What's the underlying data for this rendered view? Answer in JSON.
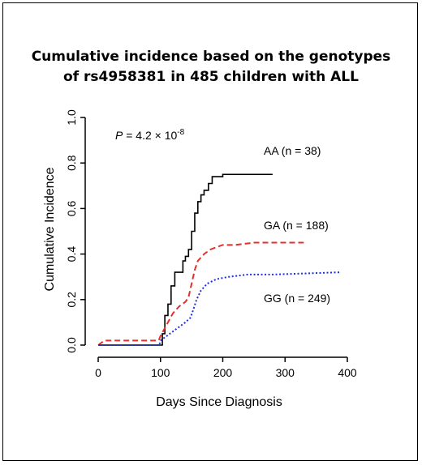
{
  "chart_data": {
    "type": "line",
    "title_lines": [
      "Cumulative incidence based on the genotypes",
      "of rs4958381 in 485 children with ALL"
    ],
    "xlabel": "Days Since Diagnosis",
    "ylabel": "Cumulative Incidence",
    "xlim": [
      0,
      400
    ],
    "ylim": [
      0,
      1.0
    ],
    "xticks": [
      "0",
      "100",
      "200",
      "300",
      "400"
    ],
    "yticks": [
      "0.0",
      "0.2",
      "0.4",
      "0.6",
      "0.8",
      "1.0"
    ],
    "annotation": {
      "p_prefix": "P",
      "p_value": " = 4.2 × 10",
      "p_exponent": "-8"
    },
    "grid": false,
    "series": [
      {
        "name": "AA (n = 38)",
        "color": "#000000",
        "style": "solid",
        "step": true,
        "x": [
          0,
          100,
          103,
          107,
          112,
          117,
          123,
          130,
          136,
          140,
          145,
          150,
          155,
          160,
          165,
          170,
          177,
          183,
          190,
          200,
          280
        ],
        "y": [
          0,
          0,
          0.05,
          0.13,
          0.18,
          0.26,
          0.32,
          0.32,
          0.37,
          0.39,
          0.42,
          0.5,
          0.58,
          0.63,
          0.66,
          0.68,
          0.71,
          0.74,
          0.74,
          0.75,
          0.75
        ]
      },
      {
        "name": "GA (n = 188)",
        "color": "#e0302c",
        "style": "dashed",
        "step": false,
        "x": [
          0,
          10,
          97,
          100,
          110,
          120,
          130,
          140,
          145,
          150,
          155,
          160,
          170,
          180,
          190,
          200,
          220,
          250,
          330
        ],
        "y": [
          0,
          0.02,
          0.02,
          0.04,
          0.09,
          0.14,
          0.17,
          0.19,
          0.21,
          0.27,
          0.33,
          0.37,
          0.4,
          0.42,
          0.43,
          0.44,
          0.44,
          0.45,
          0.45
        ]
      },
      {
        "name": "GG (n = 249)",
        "color": "#1f2fe0",
        "style": "dotted",
        "step": false,
        "x": [
          0,
          98,
          100,
          110,
          120,
          130,
          140,
          148,
          152,
          158,
          165,
          175,
          190,
          210,
          240,
          280,
          390
        ],
        "y": [
          0,
          0,
          0.02,
          0.04,
          0.06,
          0.08,
          0.1,
          0.12,
          0.15,
          0.2,
          0.24,
          0.27,
          0.29,
          0.3,
          0.31,
          0.31,
          0.32
        ]
      }
    ]
  }
}
